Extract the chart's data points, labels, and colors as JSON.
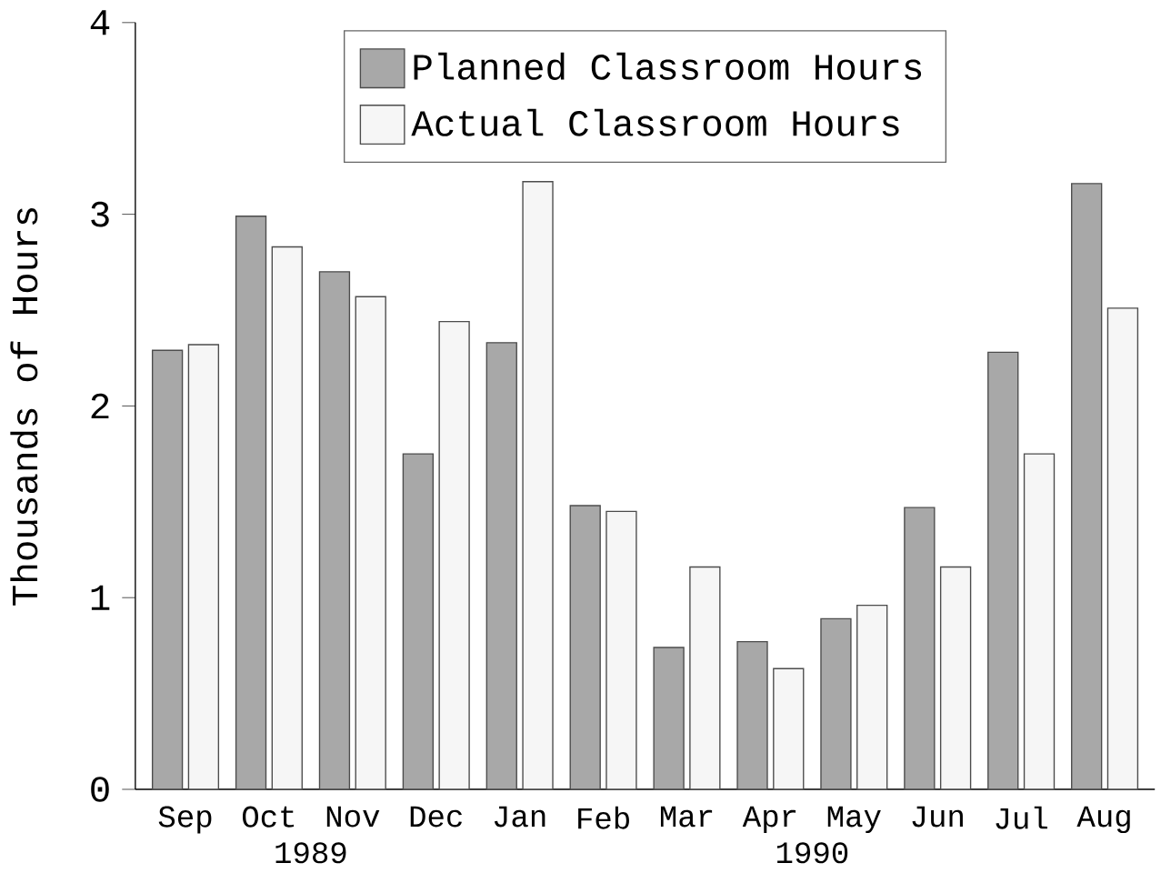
{
  "chart_data": {
    "type": "bar",
    "ylabel": "Thousands of Hours",
    "categories": [
      "Sep",
      "Oct",
      "Nov",
      "Dec",
      "Jan",
      "Feb",
      "Mar",
      "Apr",
      "May",
      "Jun",
      "Jul",
      "Aug"
    ],
    "series": [
      {
        "name": "Planned Classroom Hours",
        "color": "#a8a8a8",
        "values": [
          2.29,
          2.99,
          2.7,
          1.75,
          2.33,
          1.48,
          0.74,
          0.77,
          0.89,
          1.47,
          2.28,
          3.16
        ]
      },
      {
        "name": "Actual Classroom Hours",
        "color": "#f6f6f6",
        "values": [
          2.32,
          2.83,
          2.57,
          2.44,
          3.17,
          1.45,
          1.16,
          0.63,
          0.96,
          1.16,
          1.75,
          2.51
        ]
      }
    ],
    "ylim": [
      0,
      4
    ],
    "yticks": [
      0,
      1,
      2,
      3,
      4
    ],
    "legend": "top",
    "annotations": [
      "1989",
      "1990"
    ]
  }
}
